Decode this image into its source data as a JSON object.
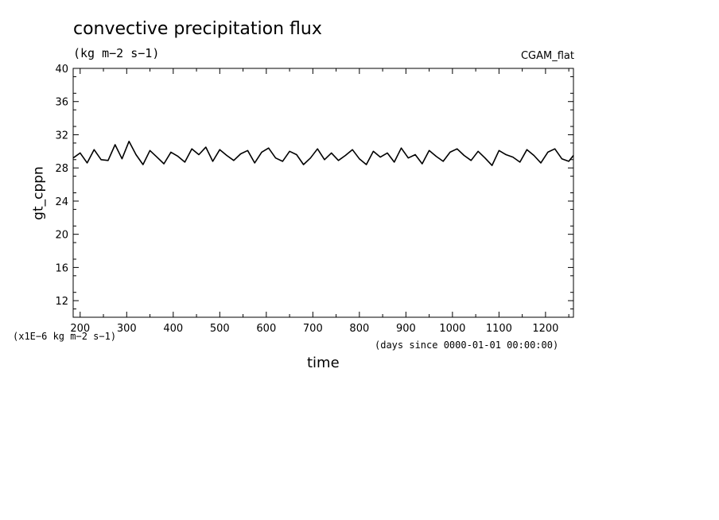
{
  "chart_data": {
    "type": "line",
    "title": "convective precipitation flux",
    "subtitle": "(kg m−2 s−1)",
    "dataset_label": "CGAM_flat",
    "xlabel": "time",
    "x_unit_label": "(days since 0000-01-01 00:00:00)",
    "ylabel": "gt_cppn",
    "y_unit_label": "(x1E−6 kg m−2 s−1)",
    "xlim": [
      185,
      1260
    ],
    "ylim": [
      10,
      40
    ],
    "x_ticks": [
      200,
      300,
      400,
      500,
      600,
      700,
      800,
      900,
      1000,
      1100,
      1200
    ],
    "y_ticks": [
      12,
      16,
      20,
      24,
      28,
      32,
      36,
      40
    ],
    "grid": false,
    "series": [
      {
        "color": "#000000",
        "x": [
          185,
          200,
          215,
          230,
          245,
          260,
          275,
          290,
          305,
          320,
          335,
          350,
          365,
          380,
          395,
          410,
          425,
          440,
          455,
          470,
          485,
          500,
          515,
          530,
          545,
          560,
          575,
          590,
          605,
          620,
          635,
          650,
          665,
          680,
          695,
          710,
          725,
          740,
          755,
          770,
          785,
          800,
          815,
          830,
          845,
          860,
          875,
          890,
          905,
          920,
          935,
          950,
          965,
          980,
          995,
          1010,
          1025,
          1040,
          1055,
          1070,
          1085,
          1100,
          1115,
          1130,
          1145,
          1160,
          1175,
          1190,
          1205,
          1220,
          1235,
          1250,
          1260
        ],
        "y": [
          29.2,
          29.8,
          28.6,
          30.2,
          29.0,
          28.9,
          30.8,
          29.1,
          31.2,
          29.6,
          28.4,
          30.1,
          29.3,
          28.5,
          29.9,
          29.4,
          28.7,
          30.3,
          29.6,
          30.5,
          28.8,
          30.2,
          29.5,
          28.9,
          29.7,
          30.1,
          28.6,
          29.9,
          30.4,
          29.2,
          28.8,
          30.0,
          29.6,
          28.4,
          29.2,
          30.3,
          29.0,
          29.8,
          28.9,
          29.5,
          30.2,
          29.1,
          28.4,
          30.0,
          29.3,
          29.8,
          28.7,
          30.4,
          29.2,
          29.6,
          28.5,
          30.1,
          29.4,
          28.8,
          29.9,
          30.3,
          29.5,
          28.9,
          30.0,
          29.2,
          28.3,
          30.1,
          29.6,
          29.3,
          28.7,
          30.2,
          29.5,
          28.6,
          29.9,
          30.3,
          29.1,
          28.8,
          29.5
        ]
      }
    ]
  }
}
